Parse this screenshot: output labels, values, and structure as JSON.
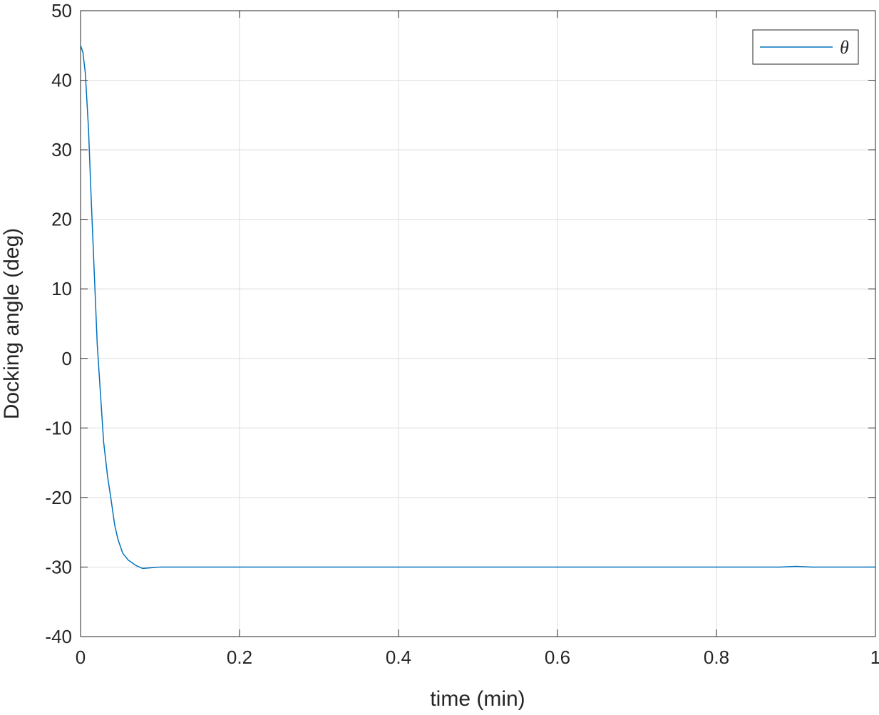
{
  "chart_data": {
    "type": "line",
    "xlabel": "time (min)",
    "ylabel": "Docking angle (deg)",
    "x": [
      0,
      0.003,
      0.006,
      0.01,
      0.013,
      0.017,
      0.021,
      0.025,
      0.029,
      0.034,
      0.038,
      0.043,
      0.047,
      0.053,
      0.06,
      0.07,
      0.078,
      0.09,
      0.1,
      0.2,
      0.4,
      0.6,
      0.8,
      0.88,
      0.9,
      0.92,
      1
    ],
    "series": [
      {
        "name": "θ",
        "color": "#0072bd",
        "values": [
          45,
          44,
          41,
          33,
          24,
          13,
          2,
          -5,
          -12,
          -17,
          -20,
          -24,
          -26,
          -28,
          -29,
          -29.8,
          -30.2,
          -30.1,
          -30,
          -30,
          -30,
          -30,
          -30,
          -30,
          -29.9,
          -30,
          -30
        ]
      }
    ],
    "xlim": [
      0,
      1
    ],
    "xticks": [
      0,
      0.2,
      0.4,
      0.6,
      0.8,
      1
    ],
    "ylim": [
      -40,
      50
    ],
    "yticks": [
      -40,
      -30,
      -20,
      -10,
      0,
      10,
      20,
      30,
      40,
      50
    ],
    "grid": true,
    "legend": "northeast"
  }
}
